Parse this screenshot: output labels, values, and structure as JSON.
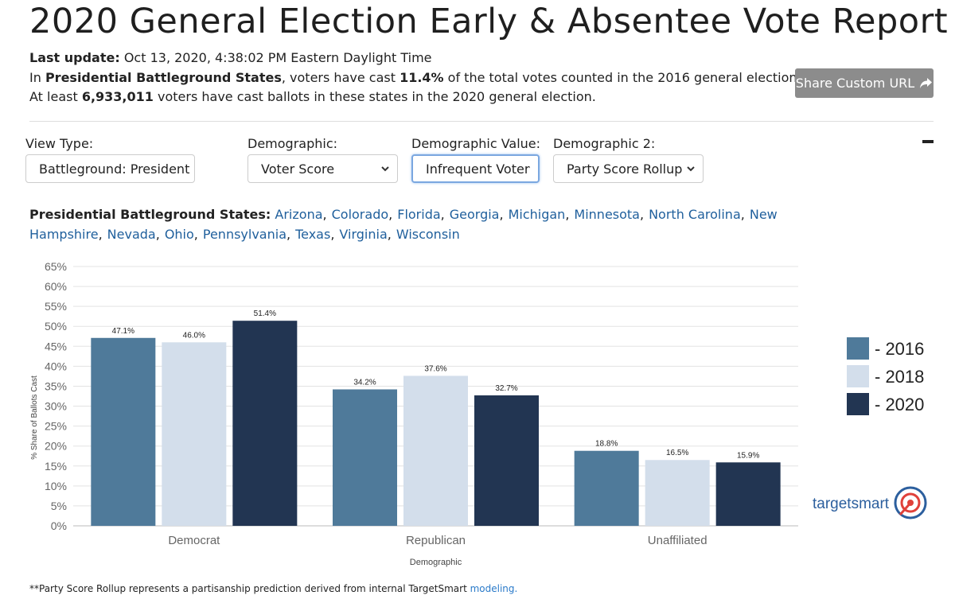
{
  "header": {
    "title": "2020 General Election Early & Absentee Vote Report",
    "last_update_label": "Last update:",
    "last_update": "Oct 13, 2020, 4:38:02 PM Eastern Daylight Time",
    "summary_1": [
      "In ",
      "Presidential Battleground States",
      ", voters have cast ",
      "11.4%",
      " of the total votes counted in the 2016 general election."
    ],
    "summary_2": [
      "At least ",
      "6,933,011",
      " voters have cast ballots in these states in the 2020 general election."
    ],
    "share_button": "Share Custom URL"
  },
  "filters": [
    {
      "label": "View Type:",
      "value": "Battleground: President"
    },
    {
      "label": "Demographic:",
      "value": "Voter Score"
    },
    {
      "label": "Demographic Value:",
      "value": "Infrequent Voter"
    },
    {
      "label": "Demographic 2:",
      "value": "Party Score Rollup"
    }
  ],
  "states": {
    "label": "Presidential Battleground States:",
    "separator": ",",
    "names": [
      "Arizona",
      "Colorado",
      "Florida",
      "Georgia",
      "Michigan",
      "Minnesota",
      "North Carolina",
      "New Hampshire",
      "Nevada",
      "Ohio",
      "Pennsylvania",
      "Texas",
      "Virginia",
      "Wisconsin"
    ]
  },
  "chart_data": {
    "type": "bar",
    "x_label": "Demographic",
    "y_label": "% Share of Ballots Cast",
    "categories": [
      "Democrat",
      "Republican",
      "Unaffiliated"
    ],
    "series": [
      {
        "name": "- 2016",
        "color": "#4f7a9a",
        "values": [
          47.1,
          34.2,
          18.8
        ],
        "value_labels": [
          "47.1%",
          "34.2%",
          "18.8%"
        ]
      },
      {
        "name": "- 2018",
        "color": "#d3deeb",
        "values": [
          46.0,
          37.6,
          16.5
        ],
        "value_labels": [
          "46.0%",
          "37.6%",
          "16.5%"
        ]
      },
      {
        "name": "- 2020",
        "color": "#223552",
        "values": [
          51.4,
          32.7,
          15.9
        ],
        "value_labels": [
          "51.4%",
          "32.7%",
          "15.9%"
        ]
      }
    ],
    "ylim": [
      0,
      65
    ],
    "yticks": [
      {
        "value": 0,
        "label": "0%"
      },
      {
        "value": 5,
        "label": "5%"
      },
      {
        "value": 10,
        "label": "10%"
      },
      {
        "value": 15,
        "label": "15%"
      },
      {
        "value": 20,
        "label": "20%"
      },
      {
        "value": 25,
        "label": "25%"
      },
      {
        "value": 30,
        "label": "30%"
      },
      {
        "value": 35,
        "label": "35%"
      },
      {
        "value": 40,
        "label": "40%"
      },
      {
        "value": 45,
        "label": "45%"
      },
      {
        "value": 50,
        "label": "50%"
      },
      {
        "value": 55,
        "label": "55%"
      },
      {
        "value": 60,
        "label": "60%"
      },
      {
        "value": 65,
        "label": "65%"
      }
    ],
    "grid": true,
    "legend": "right"
  },
  "logo": "targetsmart",
  "footnote": {
    "text": "**Party Score Rollup represents a partisanship prediction derived from internal TargetSmart",
    "link": "modeling."
  }
}
